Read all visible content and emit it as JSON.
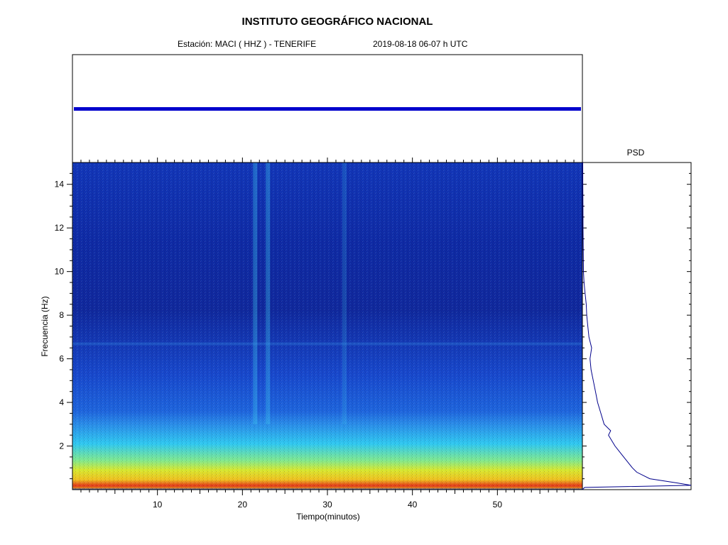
{
  "header": {
    "title": "INSTITUTO GEOGRÁFICO NACIONAL",
    "station": "Estación:  MACI ( HHZ ) - TENERIFE",
    "datetime": "2019-08-18  06-07 h UTC"
  },
  "chart_data": [
    {
      "type": "line",
      "panel": "seismogram",
      "title": "",
      "xlim": [
        0,
        60
      ],
      "series": [
        {
          "values": "constant low-amplitude background noise across 0–60 min"
        }
      ],
      "color": "#0000cc"
    },
    {
      "type": "heatmap",
      "panel": "spectrogram",
      "xlabel": "Tiempo(minutos)",
      "ylabel": "Frecuencia  (Hz)",
      "xlim": [
        0,
        60
      ],
      "ylim": [
        0,
        15
      ],
      "xticks": [
        10,
        20,
        30,
        40,
        50
      ],
      "yticks": [
        2,
        4,
        6,
        8,
        10,
        12,
        14
      ],
      "colormap": [
        "#0a1a9c",
        "#1444d8",
        "#2a8cf0",
        "#40d8e8",
        "#9cf070",
        "#f0e020",
        "#f08010",
        "#c82010"
      ],
      "features": [
        {
          "description_freq_band_hz": [
            0,
            1.2
          ],
          "level": "high"
        },
        {
          "description_freq_band_hz": [
            1.2,
            3.5
          ],
          "level": "medium"
        },
        {
          "description_freq_band_hz": [
            3.5,
            15
          ],
          "level": "low"
        },
        {
          "vertical_streak_min": 23,
          "level": "medium"
        },
        {
          "vertical_streak_min": 21.5,
          "level": "medium"
        },
        {
          "vertical_streak_min": 32,
          "level": "low-medium"
        }
      ]
    },
    {
      "type": "line",
      "panel": "psd",
      "title": "PSD",
      "ylim": [
        0,
        15
      ],
      "series": [
        {
          "freq": [
            0.1,
            0.2,
            0.3,
            0.5,
            0.8,
            1.0,
            1.5,
            2.0,
            2.5,
            2.7,
            3.0,
            3.5,
            4.0,
            4.5,
            5.0,
            5.5,
            6.0,
            6.5,
            7.0,
            7.5,
            8.0,
            8.5,
            9.0,
            9.5,
            10.0,
            11.0,
            12.0,
            13.0,
            14.0,
            15.0
          ],
          "power": [
            0.02,
            1.0,
            0.88,
            0.62,
            0.5,
            0.46,
            0.38,
            0.3,
            0.24,
            0.26,
            0.2,
            0.17,
            0.14,
            0.12,
            0.1,
            0.08,
            0.07,
            0.085,
            0.06,
            0.05,
            0.04,
            0.035,
            0.025,
            0.015,
            0.01,
            0.008,
            0.006,
            0.005,
            0.004,
            0.003
          ]
        }
      ],
      "color": "#00008b"
    }
  ]
}
